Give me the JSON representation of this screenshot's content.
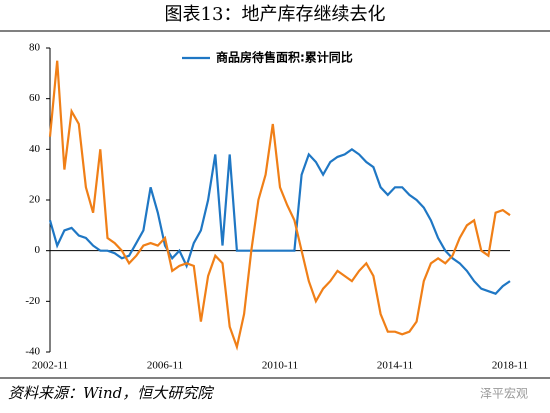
{
  "chart_data": {
    "type": "line",
    "title": "图表13：地产库存继续去化",
    "source": "资料来源：Wind，恒大研究院",
    "watermark": "泽平宏观",
    "x": [
      "2002-11",
      "2003-02",
      "2003-05",
      "2003-08",
      "2003-11",
      "2004-02",
      "2004-05",
      "2004-08",
      "2004-11",
      "2005-02",
      "2005-05",
      "2005-08",
      "2005-11",
      "2006-02",
      "2006-05",
      "2006-08",
      "2006-11",
      "2007-02",
      "2007-05",
      "2007-08",
      "2007-11",
      "2008-02",
      "2008-05",
      "2008-08",
      "2008-11",
      "2009-02",
      "2009-05",
      "2009-08",
      "2009-11",
      "2010-02",
      "2010-05",
      "2010-08",
      "2010-11",
      "2011-02",
      "2011-05",
      "2011-08",
      "2011-11",
      "2012-02",
      "2012-05",
      "2012-08",
      "2012-11",
      "2013-02",
      "2013-05",
      "2013-08",
      "2013-11",
      "2014-02",
      "2014-05",
      "2014-08",
      "2014-11",
      "2015-02",
      "2015-05",
      "2015-08",
      "2015-11",
      "2016-02",
      "2016-05",
      "2016-08",
      "2016-11",
      "2017-02",
      "2017-05",
      "2017-08",
      "2017-11",
      "2018-02",
      "2018-05",
      "2018-08",
      "2018-11"
    ],
    "series": [
      {
        "name": "商品房待售面积:累计同比",
        "color": "#1f77c4",
        "values": [
          12,
          2,
          8,
          9,
          6,
          5,
          2,
          0,
          0,
          -1,
          -3,
          -2,
          3,
          8,
          25,
          15,
          2,
          -3,
          0,
          -6,
          3,
          8,
          20,
          38,
          2,
          38,
          0,
          0,
          0,
          0,
          0,
          0,
          0,
          0,
          0,
          30,
          38,
          35,
          30,
          35,
          37,
          38,
          40,
          38,
          35,
          33,
          25,
          22,
          25,
          25,
          22,
          20,
          17,
          12,
          5,
          0,
          -3,
          -5,
          -8,
          -12,
          -15,
          -16,
          -17,
          -14,
          -12
        ]
      },
      {
        "color": "#f07f17",
        "values": [
          45,
          75,
          32,
          55,
          50,
          25,
          15,
          40,
          5,
          3,
          0,
          -5,
          -2,
          2,
          3,
          2,
          5,
          -8,
          -6,
          -5,
          -6,
          -28,
          -10,
          -2,
          -5,
          -30,
          -38,
          -25,
          0,
          20,
          30,
          50,
          25,
          18,
          12,
          0,
          -12,
          -20,
          -15,
          -12,
          -8,
          -10,
          -12,
          -8,
          -5,
          -10,
          -25,
          -32,
          -32,
          -33,
          -32,
          -28,
          -12,
          -5,
          -3,
          -5,
          -2,
          5,
          10,
          12,
          0,
          -2,
          15,
          16,
          14
        ]
      }
    ],
    "xticks": [
      "2002-11",
      "2006-11",
      "2010-11",
      "2014-11",
      "2018-11"
    ],
    "ylim": [
      -40,
      80
    ],
    "yticks": [
      -40,
      -20,
      0,
      20,
      40,
      60,
      80
    ]
  }
}
